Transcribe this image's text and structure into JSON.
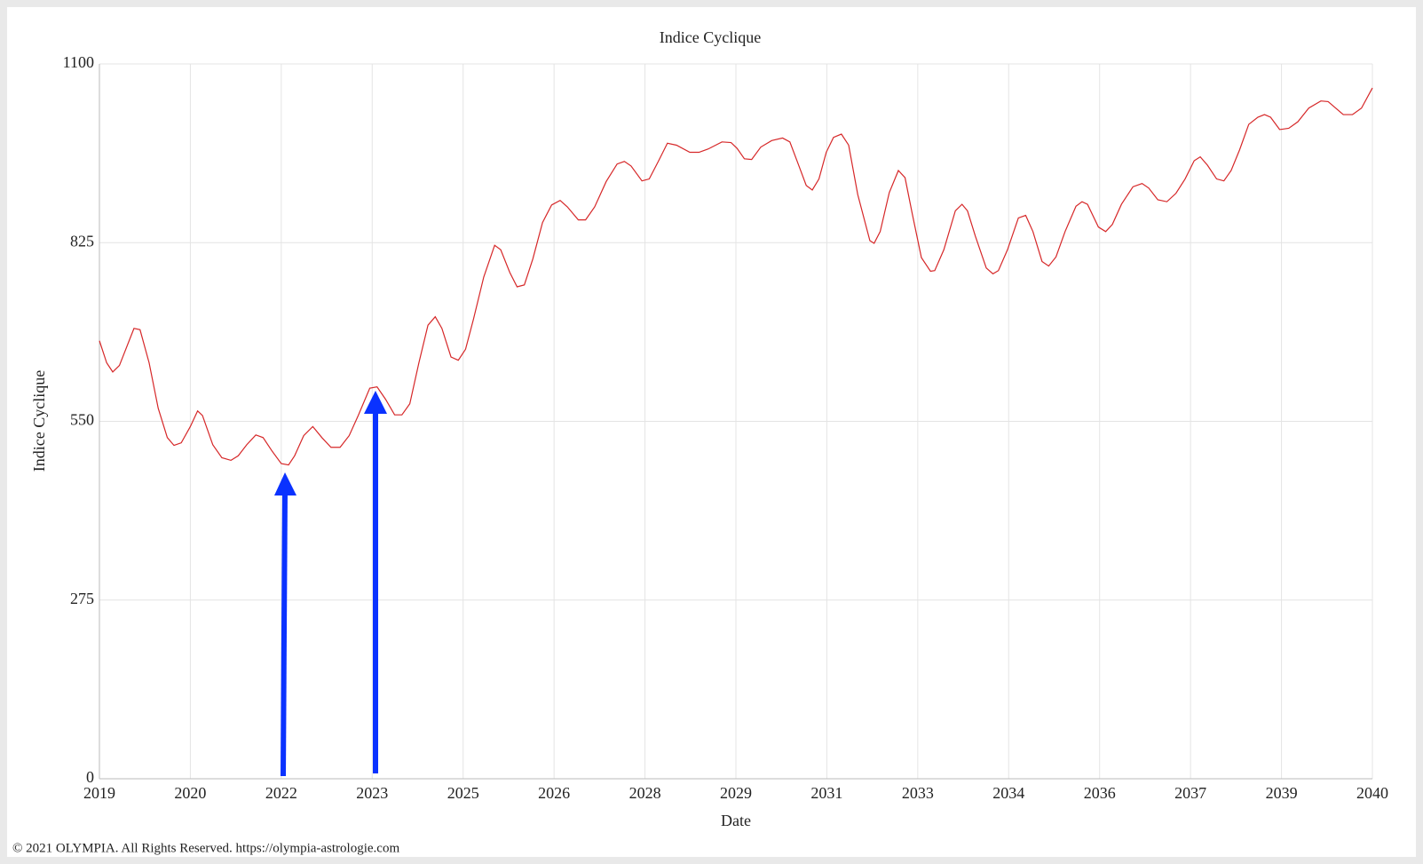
{
  "chart_data": {
    "type": "line",
    "title": "Indice Cyclique",
    "x_label": "Date",
    "y_label": "Indice Cyclique",
    "color": "#d62728",
    "grid": true,
    "x": [
      2019.0,
      2019.12,
      2019.22,
      2019.33,
      2019.57,
      2019.67,
      2019.82,
      2019.97,
      2020.12,
      2020.23,
      2020.35,
      2020.5,
      2020.62,
      2020.7,
      2020.87,
      2021.02,
      2021.17,
      2021.29,
      2021.43,
      2021.58,
      2021.7,
      2021.85,
      2022.0,
      2022.12,
      2022.22,
      2022.37,
      2022.52,
      2022.67,
      2022.82,
      2022.97,
      2023.12,
      2023.27,
      2023.46,
      2023.58,
      2023.72,
      2023.87,
      2023.99,
      2024.12,
      2024.27,
      2024.42,
      2024.54,
      2024.65,
      2024.8,
      2024.92,
      2025.04,
      2025.17,
      2025.34,
      2025.52,
      2025.62,
      2025.77,
      2025.89,
      2026.01,
      2026.15,
      2026.31,
      2026.46,
      2026.6,
      2026.72,
      2026.9,
      2027.02,
      2027.17,
      2027.36,
      2027.54,
      2027.66,
      2027.77,
      2027.95,
      2028.07,
      2028.22,
      2028.37,
      2028.52,
      2028.74,
      2028.89,
      2029.04,
      2029.27,
      2029.42,
      2029.52,
      2029.64,
      2029.76,
      2029.91,
      2030.09,
      2030.27,
      2030.39,
      2030.54,
      2030.66,
      2030.76,
      2030.87,
      2030.99,
      2031.11,
      2031.24,
      2031.36,
      2031.51,
      2031.71,
      2031.78,
      2031.88,
      2032.03,
      2032.18,
      2032.29,
      2032.41,
      2032.56,
      2032.71,
      2032.78,
      2032.93,
      2033.12,
      2033.23,
      2033.32,
      2033.45,
      2033.63,
      2033.74,
      2033.83,
      2033.98,
      2034.16,
      2034.28,
      2034.4,
      2034.55,
      2034.66,
      2034.78,
      2034.93,
      2035.11,
      2035.21,
      2035.3,
      2035.48,
      2035.6,
      2035.71,
      2035.86,
      2036.05,
      2036.2,
      2036.31,
      2036.46,
      2036.61,
      2036.76,
      2036.91,
      2037.06,
      2037.16,
      2037.28,
      2037.43,
      2037.55,
      2037.67,
      2037.81,
      2037.96,
      2038.11,
      2038.22,
      2038.32,
      2038.47,
      2038.62,
      2038.77,
      2038.95,
      2039.15,
      2039.27,
      2039.37,
      2039.52,
      2039.67,
      2039.82,
      2040.0
    ],
    "values": [
      674,
      640,
      626,
      636,
      693,
      691,
      640,
      570,
      525,
      513,
      517,
      542,
      566,
      559,
      514,
      494,
      490,
      497,
      514,
      529,
      525,
      504,
      485,
      483,
      497,
      528,
      542,
      525,
      510,
      510,
      528,
      559,
      601,
      603,
      584,
      560,
      560,
      577,
      640,
      698,
      711,
      693,
      649,
      644,
      661,
      707,
      772,
      821,
      814,
      779,
      757,
      760,
      800,
      856,
      883,
      890,
      880,
      860,
      860,
      880,
      919,
      946,
      950,
      943,
      920,
      923,
      950,
      978,
      975,
      964,
      964,
      969,
      980,
      979,
      970,
      954,
      953,
      972,
      982,
      986,
      980,
      943,
      913,
      906,
      923,
      964,
      987,
      992,
      975,
      899,
      828,
      824,
      842,
      902,
      936,
      925,
      869,
      802,
      781,
      782,
      814,
      874,
      884,
      874,
      835,
      786,
      777,
      782,
      814,
      863,
      867,
      842,
      796,
      789,
      803,
      842,
      881,
      888,
      884,
      849,
      842,
      853,
      884,
      911,
      916,
      909,
      891,
      888,
      901,
      923,
      951,
      957,
      944,
      923,
      920,
      936,
      968,
      1007,
      1018,
      1022,
      1018,
      999,
      1001,
      1011,
      1032,
      1043,
      1042,
      1034,
      1022,
      1022,
      1032,
      1063
    ],
    "xlim": [
      2019,
      2040
    ],
    "xticks": [
      2019,
      {
        "value": 2020.5,
        "label": "2020"
      },
      2022,
      {
        "value": 2023.5,
        "label": "2023"
      },
      2025,
      {
        "value": 2026.5,
        "label": "2026"
      },
      2028,
      {
        "value": 2029.5,
        "label": "2029"
      },
      2031,
      {
        "value": 2032.5,
        "label": "2033"
      },
      2034,
      {
        "value": 2035.5,
        "label": "2036"
      },
      2037,
      {
        "value": 2038.5,
        "label": "2039"
      },
      2040
    ],
    "ylim": [
      0,
      1100
    ],
    "yticks": [
      0,
      275,
      550,
      825,
      1100
    ]
  },
  "footer": "© 2021 OLYMPIA. All Rights Reserved. https://olympia-astrologie.com"
}
